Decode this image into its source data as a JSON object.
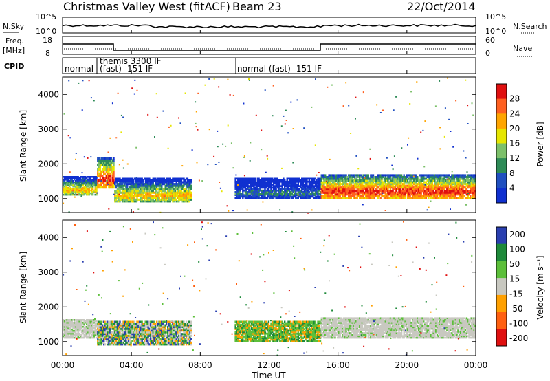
{
  "header": {
    "title": "Christmas Valley West (fitACF)",
    "beam": "Beam 23",
    "date": "22/Oct/2014"
  },
  "noise_panel": {
    "left_label": "N.Sky",
    "right_label": "N.Search",
    "ticks_left": [
      "10^5",
      "10^0"
    ],
    "ticks_right": [
      "10^5",
      "10^0"
    ]
  },
  "freq_panel": {
    "left_label_line1": "Freq.",
    "left_label_line2": "[MHz]",
    "right_label": "Nave",
    "ticks_left": [
      "18",
      "8"
    ],
    "ticks_right": [
      "60",
      "0"
    ]
  },
  "cpid_panel": {
    "label": "CPID",
    "segments": [
      {
        "label": "normal"
      },
      {
        "label": "themis 3300 IF"
      },
      {
        "label": "(fast) -151 IF"
      },
      {
        "label": "normal (fast) -151 IF"
      }
    ]
  },
  "x_axis": {
    "ticks": [
      "00:00",
      "04:00",
      "08:00",
      "12:00",
      "16:00",
      "20:00",
      "00:00"
    ],
    "label": "Time UT"
  },
  "colors": {
    "power": [
      "#1030d0",
      "#2050c0",
      "#2e8b57",
      "#7cc06a",
      "#e6e600",
      "#ffa500",
      "#ff6020",
      "#e01010"
    ],
    "velocity": [
      "#2a3fb0",
      "#1e8a3a",
      "#5cbf3a",
      "#c8c8c0",
      "#ffa000",
      "#ff6010",
      "#e01010"
    ]
  },
  "chart_data": [
    {
      "type": "heatmap",
      "name": "power",
      "ylabel": "Slant Range [km]",
      "yticks": [
        "1000",
        "2000",
        "3000",
        "4000"
      ],
      "ylim": [
        600,
        4500
      ],
      "colorbar_label": "Power [dB]",
      "colorbar_ticks": [
        "4",
        "8",
        "12",
        "16",
        "20",
        "24",
        "28"
      ],
      "bands": [
        {
          "t": [
            0,
            2
          ],
          "r": [
            1100,
            1650
          ],
          "level": "mid"
        },
        {
          "t": [
            2,
            3
          ],
          "r": [
            1300,
            2200
          ],
          "level": "high"
        },
        {
          "t": [
            3,
            7.5
          ],
          "r": [
            900,
            1600
          ],
          "level": "mid"
        },
        {
          "t": [
            10,
            15
          ],
          "r": [
            1000,
            1600
          ],
          "level": "low"
        },
        {
          "t": [
            15,
            24
          ],
          "r": [
            1000,
            1700
          ],
          "level": "high"
        }
      ]
    },
    {
      "type": "heatmap",
      "name": "velocity",
      "ylabel": "Slant Range [km]",
      "yticks": [
        "1000",
        "2000",
        "3000",
        "4000"
      ],
      "ylim": [
        600,
        4500
      ],
      "colorbar_label": "Velocity [m s⁻¹]",
      "colorbar_ticks": [
        "200",
        "100",
        "50",
        "15",
        "-15",
        "-50",
        "-100",
        "-200"
      ],
      "bands": [
        {
          "t": [
            0,
            2
          ],
          "r": [
            1100,
            1650
          ],
          "level": "near-zero"
        },
        {
          "t": [
            2,
            7.5
          ],
          "r": [
            900,
            1600
          ],
          "level": "mixed"
        },
        {
          "t": [
            10,
            15
          ],
          "r": [
            1000,
            1600
          ],
          "level": "positive"
        },
        {
          "t": [
            15,
            24
          ],
          "r": [
            1100,
            1700
          ],
          "level": "near-zero"
        }
      ]
    }
  ]
}
